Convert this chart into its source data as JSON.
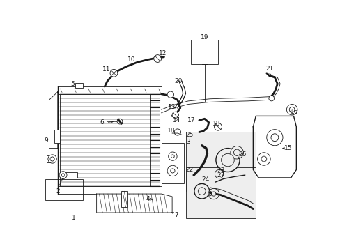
{
  "bg_color": "#ffffff",
  "line_color": "#1a1a1a",
  "fig_width": 4.89,
  "fig_height": 3.6,
  "dpi": 100,
  "label_fontsize": 6.5
}
